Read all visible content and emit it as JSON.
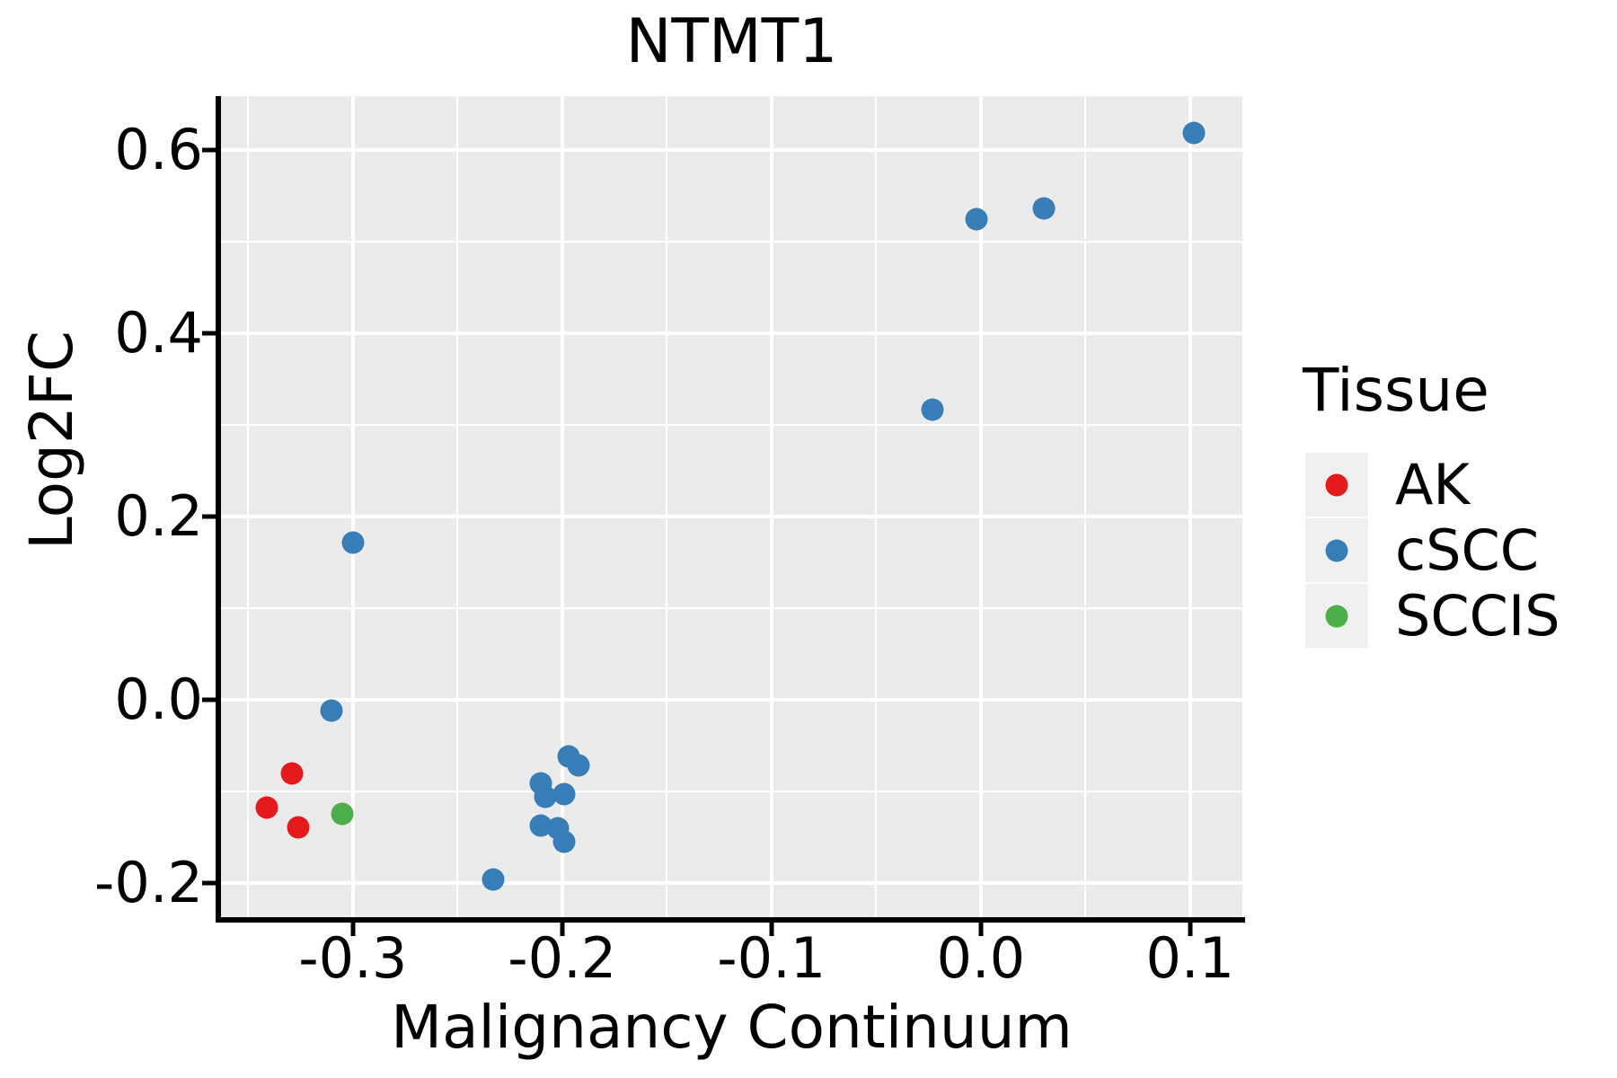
{
  "title": "NTMT1",
  "axes": {
    "x_label": "Malignancy Continuum",
    "y_label": "Log2FC"
  },
  "legend": {
    "title": "Tissue",
    "entries": [
      {
        "label": "AK",
        "color": "#e41a1c"
      },
      {
        "label": "cSCC",
        "color": "#377eb8"
      },
      {
        "label": "SCCIS",
        "color": "#4daf4a"
      }
    ]
  },
  "style": {
    "panel_bg": "#ebebeb",
    "grid_color": "#ffffff",
    "axis_color": "#000000",
    "legend_key_bg": "#f0f0f0"
  },
  "chart_data": {
    "type": "scatter",
    "title": "NTMT1",
    "xlabel": "Malignancy Continuum",
    "ylabel": "Log2FC",
    "xlim": [
      -0.363,
      0.125
    ],
    "ylim": [
      -0.237,
      0.659
    ],
    "grid": true,
    "legend_position": "right",
    "x_ticks": {
      "values": [
        -0.3,
        -0.2,
        -0.1,
        0.0,
        0.1
      ],
      "labels": [
        "-0.3",
        "-0.2",
        "-0.1",
        "0.0",
        "0.1"
      ]
    },
    "y_ticks": {
      "values": [
        -0.2,
        0.0,
        0.2,
        0.4,
        0.6
      ],
      "labels": [
        "-0.2",
        "0.0",
        "0.2",
        "0.4",
        "0.6"
      ]
    },
    "x_minor": [
      -0.35,
      -0.25,
      -0.15,
      -0.05,
      0.05
    ],
    "y_minor": [
      -0.1,
      0.1,
      0.3,
      0.5
    ],
    "series": [
      {
        "name": "AK",
        "color": "#e41a1c",
        "points": [
          [
            -0.329,
            -0.08
          ],
          [
            -0.341,
            -0.117
          ],
          [
            -0.326,
            -0.139
          ]
        ]
      },
      {
        "name": "cSCC",
        "color": "#377eb8",
        "points": [
          [
            0.102,
            0.619
          ],
          [
            0.03,
            0.536
          ],
          [
            -0.002,
            0.525
          ],
          [
            -0.023,
            0.317
          ],
          [
            -0.3,
            0.172
          ],
          [
            -0.31,
            -0.012
          ],
          [
            -0.197,
            -0.062
          ],
          [
            -0.192,
            -0.071
          ],
          [
            -0.21,
            -0.091
          ],
          [
            -0.208,
            -0.106
          ],
          [
            -0.199,
            -0.103
          ],
          [
            -0.21,
            -0.137
          ],
          [
            -0.202,
            -0.14
          ],
          [
            -0.199,
            -0.155
          ],
          [
            -0.233,
            -0.196
          ]
        ]
      },
      {
        "name": "SCCIS",
        "color": "#4daf4a",
        "points": [
          [
            -0.305,
            -0.124
          ]
        ]
      }
    ]
  }
}
